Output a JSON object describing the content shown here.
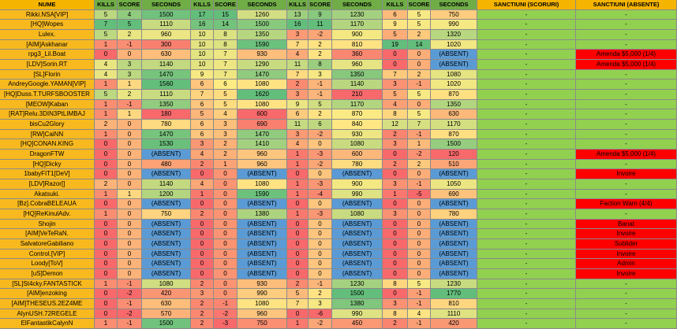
{
  "header": [
    "NUME",
    "KILLS",
    "SCORE",
    "SECONDS",
    "KILLS",
    "SCORE",
    "SECONDS",
    "KILLS",
    "SCORE",
    "SECONDS",
    "KILLS",
    "SCORE",
    "SECONDS",
    "SANCTIUNI (SCORURI)",
    "SANCTIUNI (ABSENTE)"
  ],
  "rows": [
    [
      "Rikki.NSA[VIP]",
      5,
      4,
      1500,
      17,
      15,
      1260,
      13,
      9,
      1230,
      6,
      5,
      750,
      "-",
      "-"
    ],
    [
      "[HQ]Wopes",
      7,
      5,
      1110,
      16,
      14,
      1500,
      16,
      11,
      1170,
      9,
      5,
      990,
      "-",
      "-"
    ],
    [
      "Lulex.",
      5,
      2,
      960,
      10,
      8,
      1350,
      3,
      -2,
      900,
      5,
      2,
      1320,
      "-",
      "-"
    ],
    [
      "[AIM]Askhanar",
      1,
      -1,
      300,
      10,
      8,
      1590,
      7,
      2,
      810,
      19,
      14,
      1020,
      "-",
      "-"
    ],
    [
      "rpg3_Lil.Boat",
      0,
      0,
      630,
      10,
      7,
      930,
      4,
      2,
      360,
      0,
      0,
      "(ABSENT)",
      "-",
      "Amenda $5,000 (1/4)"
    ],
    [
      "[LDV]Sorin.RT",
      4,
      3,
      1140,
      10,
      7,
      1290,
      11,
      8,
      960,
      0,
      0,
      "(ABSENT)",
      "-",
      "Amenda $5,000 (1/4)"
    ],
    [
      "[SL]Florin",
      4,
      3,
      1470,
      9,
      7,
      1470,
      7,
      3,
      1350,
      7,
      2,
      1080,
      "-",
      "-"
    ],
    [
      "AndreyGoogle.YAMAN[VIP]",
      1,
      1,
      1560,
      6,
      6,
      1080,
      2,
      -1,
      1140,
      3,
      -1,
      1020,
      "-",
      "-"
    ],
    [
      "[HQ]Duss.T.TURFSBOOSTER",
      5,
      2,
      1110,
      7,
      5,
      1620,
      3,
      -1,
      210,
      5,
      5,
      870,
      "-",
      "-"
    ],
    [
      "[MEOW]Kaban",
      1,
      -1,
      1350,
      6,
      5,
      1080,
      9,
      5,
      1170,
      4,
      0,
      1350,
      "-",
      "-"
    ],
    [
      "[RAT]Relu.3DIN3PtLIMBAJ",
      1,
      1,
      180,
      5,
      4,
      600,
      6,
      2,
      870,
      8,
      5,
      630,
      "-",
      "-"
    ],
    [
      "bisCu2Glory",
      2,
      0,
      780,
      6,
      3,
      690,
      11,
      6,
      840,
      12,
      7,
      1170,
      "-",
      "-"
    ],
    [
      "[RW]CaiNN",
      1,
      0,
      1470,
      6,
      3,
      1470,
      3,
      -2,
      930,
      2,
      -1,
      870,
      "-",
      "-"
    ],
    [
      "[HQ]CONAN.KING",
      0,
      0,
      1530,
      3,
      2,
      1410,
      4,
      0,
      1080,
      3,
      1,
      1500,
      "-",
      "-"
    ],
    [
      "DragonFTW",
      0,
      0,
      "(ABSENT)",
      4,
      2,
      960,
      1,
      -3,
      600,
      0,
      -2,
      120,
      "-",
      "Amenda $5,000 (1/4)"
    ],
    [
      "[HQ]Dicky",
      0,
      0,
      480,
      2,
      1,
      960,
      1,
      -2,
      780,
      2,
      2,
      510,
      "-",
      "-"
    ],
    [
      "1babyFIT1[DeV]",
      0,
      0,
      "(ABSENT)",
      0,
      0,
      "(ABSENT)",
      0,
      0,
      "(ABSENT)",
      0,
      0,
      "(ABSENT)",
      "-",
      "Invoire"
    ],
    [
      "[LDV]Razor[]",
      2,
      0,
      1140,
      4,
      0,
      1080,
      1,
      -3,
      900,
      3,
      -1,
      1050,
      "-",
      "-"
    ],
    [
      "Akatsuki.",
      1,
      1,
      1200,
      1,
      0,
      1590,
      1,
      -4,
      990,
      1,
      -5,
      690,
      "-",
      "-"
    ],
    [
      "[Bz].CobraBELEAUA",
      0,
      0,
      "(ABSENT)",
      0,
      0,
      "(ABSENT)",
      0,
      0,
      "(ABSENT)",
      0,
      0,
      "(ABSENT)",
      "-",
      "Faction Warn (4/4)"
    ],
    [
      "[HQ]ReKinulAdv.",
      1,
      0,
      750,
      2,
      0,
      1380,
      1,
      -3,
      1080,
      3,
      0,
      780,
      "-",
      "-"
    ],
    [
      "Shojin",
      0,
      0,
      "(ABSENT)",
      0,
      0,
      "(ABSENT)",
      0,
      0,
      "(ABSENT)",
      0,
      0,
      "(ABSENT)",
      "-",
      "Banat"
    ],
    [
      "[AIM]VeTeRaN.",
      0,
      0,
      "(ABSENT)",
      0,
      0,
      "(ABSENT)",
      0,
      0,
      "(ABSENT)",
      0,
      0,
      "(ABSENT)",
      "-",
      "Invoire"
    ],
    [
      "SalvatoreGabiliano",
      0,
      0,
      "(ABSENT)",
      0,
      0,
      "(ABSENT)",
      0,
      0,
      "(ABSENT)",
      0,
      0,
      "(ABSENT)",
      "-",
      "Sublider"
    ],
    [
      "Control.[VIP]",
      0,
      0,
      "(ABSENT)",
      0,
      0,
      "(ABSENT)",
      0,
      0,
      "(ABSENT)",
      0,
      0,
      "(ABSENT)",
      "-",
      "Invoire"
    ],
    [
      "Loody[ToV]",
      0,
      0,
      "(ABSENT)",
      0,
      0,
      "(ABSENT)",
      0,
      0,
      "(ABSENT)",
      0,
      0,
      "(ABSENT)",
      "-",
      "Admin"
    ],
    [
      "[uS]Demon",
      0,
      0,
      "(ABSENT)",
      0,
      0,
      "(ABSENT)",
      0,
      0,
      "(ABSENT)",
      0,
      0,
      "(ABSENT)",
      "-",
      "Invoire"
    ],
    [
      "[SL]St4cky.FANTASTICK",
      1,
      -1,
      1080,
      2,
      0,
      930,
      2,
      -1,
      1230,
      8,
      5,
      1230,
      "-",
      "-"
    ],
    [
      "[AIM]enzoking",
      0,
      -2,
      420,
      3,
      0,
      990,
      5,
      2,
      1500,
      0,
      -1,
      1770,
      "-",
      "-"
    ],
    [
      "[AIM]THESEUS.2EZ4ME",
      0,
      -1,
      630,
      2,
      -1,
      1080,
      7,
      3,
      1380,
      3,
      -1,
      810,
      "-",
      "-"
    ],
    [
      "AlynUSH.72REGELE",
      0,
      -2,
      570,
      2,
      -2,
      960,
      0,
      -6,
      990,
      8,
      4,
      1110,
      "-",
      "-"
    ],
    [
      "ElFantastikCalynN",
      1,
      -1,
      1500,
      2,
      -3,
      750,
      1,
      -2,
      450,
      2,
      -1,
      420,
      "-",
      "-"
    ]
  ]
}
